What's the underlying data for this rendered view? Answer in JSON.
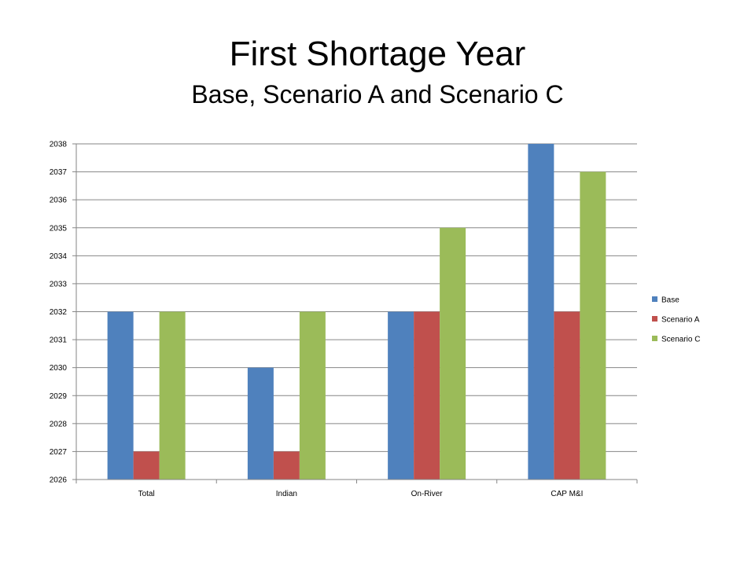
{
  "title": "First Shortage Year",
  "subtitle": "Base, Scenario A and Scenario C",
  "chart_data": {
    "type": "bar",
    "title": "First Shortage Year",
    "subtitle": "Base, Scenario A and Scenario C",
    "xlabel": "",
    "ylabel": "",
    "categories": [
      "Total",
      "Indian",
      "On-River",
      "CAP M&I"
    ],
    "series": [
      {
        "name": "Base",
        "color": "#4F81BD",
        "values": [
          2032,
          2030,
          2032,
          2038
        ]
      },
      {
        "name": "Scenario A",
        "color": "#C0504D",
        "values": [
          2027,
          2027,
          2032,
          2032
        ]
      },
      {
        "name": "Scenario C",
        "color": "#9BBB59",
        "values": [
          2032,
          2032,
          2035,
          2037
        ]
      }
    ],
    "ylim": [
      2026,
      2038
    ],
    "yticks": [
      2026,
      2027,
      2028,
      2029,
      2030,
      2031,
      2032,
      2033,
      2034,
      2035,
      2036,
      2037,
      2038
    ],
    "grid": true,
    "legend_position": "right"
  }
}
